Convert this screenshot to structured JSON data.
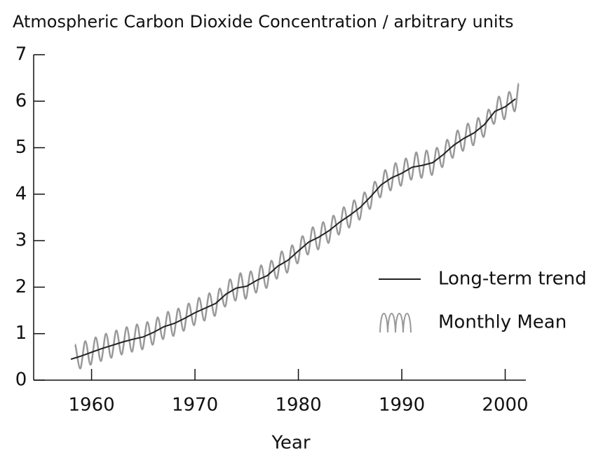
{
  "chart_data": {
    "type": "line",
    "title": "Atmospheric Carbon Dioxide Concentration / arbitrary units",
    "x_label": "Year",
    "xlim": [
      1954.4,
      2002
    ],
    "xticks": [
      1960,
      1970,
      1980,
      1990,
      2000
    ],
    "ylim": [
      0,
      7
    ],
    "yticks": [
      0,
      1,
      2,
      3,
      4,
      5,
      6,
      7
    ],
    "legend": "right",
    "series": [
      {
        "name": "Long-term trend",
        "color": "#222222",
        "x": [
          1958,
          1959,
          1960,
          1961,
          1962,
          1963,
          1964,
          1965,
          1966,
          1967,
          1968,
          1969,
          1970,
          1971,
          1972,
          1973,
          1974,
          1975,
          1976,
          1977,
          1978,
          1979,
          1980,
          1981,
          1982,
          1983,
          1984,
          1985,
          1986,
          1987,
          1988,
          1989,
          1990,
          1991,
          1992,
          1993,
          1994,
          1995,
          1996,
          1997,
          1998,
          1999,
          2000,
          2001
        ],
        "values": [
          0.45,
          0.52,
          0.6,
          0.68,
          0.75,
          0.82,
          0.88,
          0.93,
          1.03,
          1.15,
          1.22,
          1.33,
          1.45,
          1.55,
          1.65,
          1.85,
          1.98,
          2.02,
          2.15,
          2.25,
          2.45,
          2.58,
          2.78,
          2.97,
          3.08,
          3.22,
          3.4,
          3.55,
          3.72,
          3.95,
          4.2,
          4.35,
          4.45,
          4.58,
          4.62,
          4.68,
          4.85,
          5.05,
          5.2,
          5.32,
          5.5,
          5.78,
          5.88,
          6.05
        ]
      },
      {
        "name": "Monthly Mean",
        "color": "#999999",
        "x": [
          1958.4,
          1958.9,
          1959.4,
          1959.9,
          1960.4,
          1960.9,
          1961.4,
          1961.9,
          1962.4,
          1962.9,
          1963.4,
          1963.9,
          1964.4,
          1964.9,
          1965.4,
          1965.9,
          1966.4,
          1966.9,
          1967.4,
          1967.9,
          1968.4,
          1968.9,
          1969.4,
          1969.9,
          1970.4,
          1970.9,
          1971.4,
          1971.9,
          1972.4,
          1972.9,
          1973.4,
          1973.9,
          1974.4,
          1974.9,
          1975.4,
          1975.9,
          1976.4,
          1976.9,
          1977.4,
          1977.9,
          1978.4,
          1978.9,
          1979.4,
          1979.9,
          1980.4,
          1980.9,
          1981.4,
          1981.9,
          1982.4,
          1982.9,
          1983.4,
          1983.9,
          1984.4,
          1984.9,
          1985.4,
          1985.9,
          1986.4,
          1986.9,
          1987.4,
          1987.9,
          1988.4,
          1988.9,
          1989.4,
          1989.9,
          1990.4,
          1990.9,
          1991.4,
          1991.9,
          1992.4,
          1992.9,
          1993.4,
          1993.9,
          1994.4,
          1994.9,
          1995.4,
          1995.9,
          1996.4,
          1996.9,
          1997.4,
          1997.9,
          1998.4,
          1998.9,
          1999.4,
          1999.9,
          2000.4,
          2000.9,
          2001.3
        ],
        "values": [
          0.77,
          0.25,
          0.84,
          0.33,
          0.92,
          0.41,
          1.0,
          0.48,
          1.07,
          0.55,
          1.14,
          0.61,
          1.2,
          0.66,
          1.25,
          0.76,
          1.35,
          0.88,
          1.47,
          0.95,
          1.54,
          1.06,
          1.65,
          1.18,
          1.77,
          1.28,
          1.87,
          1.38,
          1.97,
          1.58,
          2.17,
          1.71,
          2.3,
          1.75,
          2.34,
          1.88,
          2.47,
          1.98,
          2.57,
          2.18,
          2.77,
          2.31,
          2.9,
          2.51,
          3.1,
          2.7,
          3.29,
          2.81,
          3.4,
          2.95,
          3.54,
          3.13,
          3.72,
          3.28,
          3.87,
          3.45,
          4.04,
          3.68,
          4.27,
          3.93,
          4.52,
          4.08,
          4.67,
          4.18,
          4.77,
          4.31,
          4.9,
          4.35,
          4.94,
          4.41,
          5.0,
          4.58,
          5.17,
          4.78,
          5.37,
          4.93,
          5.52,
          5.05,
          5.64,
          5.23,
          5.82,
          5.51,
          6.1,
          5.61,
          6.2,
          5.78,
          6.38
        ]
      }
    ]
  }
}
